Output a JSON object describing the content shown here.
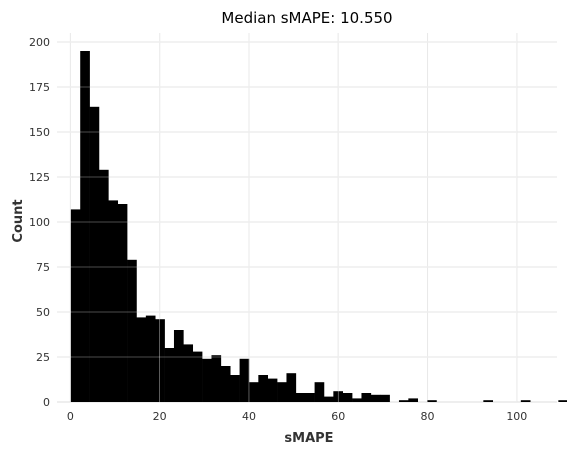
{
  "chart_data": {
    "type": "bar",
    "title": "Median sMAPE: 10.550",
    "xlabel": "sMAPE",
    "ylabel": "Count",
    "xlim": [
      -3,
      109
    ],
    "ylim": [
      0,
      205
    ],
    "xticks": [
      0,
      20,
      40,
      60,
      80,
      100
    ],
    "yticks": [
      0,
      25,
      50,
      75,
      100,
      125,
      150,
      175,
      200
    ],
    "grid": true,
    "color": "#000000",
    "bin_width": 2.1,
    "bins_start": 0.1,
    "values": [
      107,
      195,
      164,
      129,
      112,
      110,
      79,
      47,
      48,
      46,
      30,
      40,
      32,
      28,
      24,
      26,
      20,
      15,
      24,
      11,
      15,
      13,
      11,
      16,
      5,
      5,
      11,
      3,
      6,
      5,
      2,
      5,
      4,
      4,
      0,
      1,
      2,
      0,
      1,
      0,
      0,
      0,
      0,
      0,
      1,
      0,
      0,
      0,
      1,
      0,
      0,
      0,
      1,
      0,
      0,
      0,
      0,
      0,
      0,
      0,
      0,
      0,
      0,
      0,
      0,
      0,
      0
    ]
  }
}
